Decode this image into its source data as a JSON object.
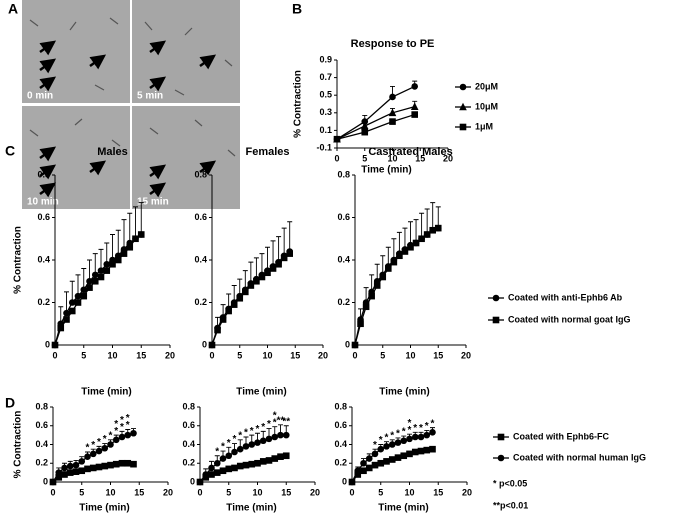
{
  "panel_a": {
    "label": "A",
    "images": [
      "0 min",
      "5 min",
      "10 min",
      "15 min"
    ]
  },
  "chart_data": [
    {
      "type": "line",
      "panel_label": "B",
      "title": "Response to PE",
      "xlabel": "Time (min)",
      "ylabel": "% Contraction",
      "x": [
        0,
        5,
        10,
        14
      ],
      "xlim": [
        0,
        20
      ],
      "xticks": [
        0,
        5,
        10,
        15,
        20
      ],
      "ylim": [
        -0.1,
        0.9
      ],
      "yticks": [
        -0.1,
        0.1,
        0.3,
        0.5,
        0.7,
        0.9
      ],
      "legend": "right",
      "series": [
        {
          "name": "20μM",
          "color": "#000000",
          "marker": "circle",
          "values": [
            0,
            0.2,
            0.48,
            0.6
          ],
          "errors": [
            0,
            0.07,
            0.12,
            0.06
          ]
        },
        {
          "name": "10μM",
          "color": "#000000",
          "marker": "triangle",
          "values": [
            0,
            0.15,
            0.3,
            0.37
          ],
          "errors": [
            0,
            0.05,
            0.05,
            0.06
          ]
        },
        {
          "name": "1μM",
          "color": "#000000",
          "marker": "square",
          "values": [
            0,
            0.08,
            0.2,
            0.28
          ],
          "errors": [
            0,
            0.02,
            0.03,
            0.03
          ]
        }
      ]
    },
    {
      "type": "line",
      "panel_label": "C",
      "title": "Males",
      "xlabel": "Time (min)",
      "ylabel": "% Contraction",
      "x": [
        0,
        1,
        2,
        3,
        4,
        5,
        6,
        7,
        8,
        9,
        10,
        11,
        12,
        13,
        14,
        15
      ],
      "xlim": [
        0,
        20
      ],
      "xticks": [
        0,
        5,
        10,
        15,
        20
      ],
      "ylim": [
        0,
        0.8
      ],
      "yticks": [
        0,
        0.2,
        0.4,
        0.6,
        0.8
      ],
      "series": [
        {
          "color": "#000000",
          "marker": "circle",
          "values": [
            0,
            0.1,
            0.15,
            0.2,
            0.23,
            0.26,
            0.3,
            0.33,
            0.35,
            0.38,
            0.4,
            0.42,
            0.45,
            0.48,
            0.5,
            0.52
          ],
          "errors": [
            0,
            0.08,
            0.1,
            0.1,
            0.1,
            0.1,
            0.1,
            0.1,
            0.1,
            0.1,
            0.12,
            0.12,
            0.14,
            0.14,
            0.15,
            0.15
          ]
        },
        {
          "color": "#000000",
          "marker": "square",
          "values": [
            0,
            0.08,
            0.12,
            0.16,
            0.2,
            0.23,
            0.27,
            0.3,
            0.32,
            0.35,
            0.38,
            0.4,
            0.43,
            0.46,
            0.5,
            0.52
          ]
        }
      ]
    },
    {
      "type": "line",
      "title": "Females",
      "xlabel": "Time (min)",
      "x": [
        0,
        1,
        2,
        3,
        4,
        5,
        6,
        7,
        8,
        9,
        10,
        11,
        12,
        13,
        14
      ],
      "xlim": [
        0,
        20
      ],
      "xticks": [
        0,
        5,
        10,
        15,
        20
      ],
      "ylim": [
        0,
        0.8
      ],
      "yticks": [
        0,
        0.2,
        0.4,
        0.6,
        0.8
      ],
      "series": [
        {
          "color": "#000000",
          "marker": "circle",
          "values": [
            0,
            0.08,
            0.13,
            0.17,
            0.2,
            0.23,
            0.26,
            0.29,
            0.31,
            0.33,
            0.35,
            0.37,
            0.39,
            0.42,
            0.44
          ],
          "errors": [
            0,
            0.05,
            0.06,
            0.07,
            0.08,
            0.08,
            0.09,
            0.1,
            0.1,
            0.1,
            0.11,
            0.12,
            0.12,
            0.13,
            0.14
          ]
        },
        {
          "color": "#000000",
          "marker": "square",
          "values": [
            0,
            0.07,
            0.12,
            0.16,
            0.19,
            0.22,
            0.25,
            0.28,
            0.3,
            0.32,
            0.34,
            0.36,
            0.38,
            0.41,
            0.43
          ]
        }
      ]
    },
    {
      "type": "line",
      "title": "Castrated Males",
      "xlabel": "Time (min)",
      "x": [
        0,
        1,
        2,
        3,
        4,
        5,
        6,
        7,
        8,
        9,
        10,
        11,
        12,
        13,
        14,
        15
      ],
      "xlim": [
        0,
        20
      ],
      "xticks": [
        0,
        5,
        10,
        15,
        20
      ],
      "ylim": [
        0,
        0.8
      ],
      "yticks": [
        0,
        0.2,
        0.4,
        0.6,
        0.8
      ],
      "legend": "right",
      "series": [
        {
          "name": "Coated with anti-Ephb6 Ab",
          "color": "#000000",
          "marker": "circle",
          "values": [
            0,
            0.12,
            0.2,
            0.25,
            0.3,
            0.33,
            0.37,
            0.4,
            0.43,
            0.45,
            0.47,
            0.48,
            0.5,
            0.52,
            0.54,
            0.55
          ],
          "errors": [
            0,
            0.05,
            0.07,
            0.08,
            0.08,
            0.09,
            0.09,
            0.1,
            0.1,
            0.1,
            0.11,
            0.11,
            0.12,
            0.12,
            0.13,
            0.1
          ]
        },
        {
          "name": "Coated with normal goat IgG",
          "color": "#000000",
          "marker": "square",
          "values": [
            0,
            0.1,
            0.18,
            0.23,
            0.28,
            0.32,
            0.36,
            0.39,
            0.42,
            0.44,
            0.46,
            0.48,
            0.5,
            0.52,
            0.54,
            0.55
          ]
        }
      ]
    },
    {
      "type": "line",
      "panel_label": "D",
      "xlabel": "Time (min)",
      "ylabel": "% Contraction",
      "x": [
        0,
        1,
        2,
        3,
        4,
        5,
        6,
        7,
        8,
        9,
        10,
        11,
        12,
        13,
        14
      ],
      "xlim": [
        0,
        20
      ],
      "xticks": [
        0,
        5,
        10,
        15,
        20
      ],
      "ylim": [
        0,
        0.8
      ],
      "yticks": [
        0,
        0.2,
        0.4,
        0.6,
        0.8
      ],
      "series": [
        {
          "color": "#000000",
          "marker": "square",
          "values": [
            0,
            0.05,
            0.08,
            0.1,
            0.11,
            0.12,
            0.14,
            0.15,
            0.16,
            0.17,
            0.18,
            0.19,
            0.2,
            0.2,
            0.19
          ]
        },
        {
          "color": "#000000",
          "marker": "circle",
          "values": [
            0,
            0.1,
            0.15,
            0.17,
            0.18,
            0.22,
            0.27,
            0.3,
            0.33,
            0.36,
            0.4,
            0.45,
            0.48,
            0.5,
            0.52
          ],
          "errors": [
            0,
            0.05,
            0.05,
            0.05,
            0.05,
            0.05,
            0.05,
            0.05,
            0.05,
            0.05,
            0.05,
            0.05,
            0.06,
            0.06,
            0.05
          ]
        }
      ],
      "annotations": [
        {
          "x": 6,
          "text": "*"
        },
        {
          "x": 7,
          "text": "*"
        },
        {
          "x": 8,
          "text": "*"
        },
        {
          "x": 9,
          "text": "*"
        },
        {
          "x": 10,
          "text": "*"
        },
        {
          "x": 11,
          "text": "*"
        },
        {
          "x": 12,
          "text": "*"
        },
        {
          "x": 13,
          "text": "*"
        },
        {
          "x": 11,
          "text": "*"
        },
        {
          "x": 12,
          "text": "*"
        },
        {
          "x": 13,
          "text": "*"
        }
      ]
    },
    {
      "type": "line",
      "xlabel": "Time (min)",
      "x": [
        0,
        1,
        2,
        3,
        4,
        5,
        6,
        7,
        8,
        9,
        10,
        11,
        12,
        13,
        14,
        15
      ],
      "xlim": [
        0,
        20
      ],
      "xticks": [
        0,
        5,
        10,
        15,
        20
      ],
      "ylim": [
        0,
        0.8
      ],
      "yticks": [
        0,
        0.2,
        0.4,
        0.6,
        0.8
      ],
      "series": [
        {
          "color": "#000000",
          "marker": "square",
          "values": [
            0,
            0.05,
            0.08,
            0.1,
            0.12,
            0.14,
            0.15,
            0.17,
            0.18,
            0.19,
            0.2,
            0.22,
            0.23,
            0.25,
            0.27,
            0.28
          ]
        },
        {
          "color": "#000000",
          "marker": "circle",
          "values": [
            0,
            0.08,
            0.15,
            0.2,
            0.25,
            0.28,
            0.32,
            0.35,
            0.38,
            0.4,
            0.42,
            0.44,
            0.46,
            0.48,
            0.5,
            0.5
          ],
          "errors": [
            0,
            0.06,
            0.07,
            0.08,
            0.08,
            0.09,
            0.09,
            0.1,
            0.1,
            0.1,
            0.1,
            0.1,
            0.11,
            0.11,
            0.11,
            0.1
          ]
        }
      ],
      "annotations": [
        {
          "x": 3,
          "text": "*"
        },
        {
          "x": 4,
          "text": "*"
        },
        {
          "x": 5,
          "text": "*"
        },
        {
          "x": 6,
          "text": "*"
        },
        {
          "x": 7,
          "text": "*"
        },
        {
          "x": 8,
          "text": "*"
        },
        {
          "x": 9,
          "text": "*"
        },
        {
          "x": 10,
          "text": "*"
        },
        {
          "x": 11,
          "text": "*"
        },
        {
          "x": 12,
          "text": "*"
        },
        {
          "x": 13,
          "text": "*"
        },
        {
          "x": 13,
          "text": "*"
        },
        {
          "x": 14,
          "text": "**"
        },
        {
          "x": 15,
          "text": "**"
        }
      ]
    },
    {
      "type": "line",
      "xlabel": "Time (min)",
      "x": [
        0,
        1,
        2,
        3,
        4,
        5,
        6,
        7,
        8,
        9,
        10,
        11,
        12,
        13,
        14
      ],
      "xlim": [
        0,
        20
      ],
      "xticks": [
        0,
        5,
        10,
        15,
        20
      ],
      "ylim": [
        0,
        0.8
      ],
      "yticks": [
        0,
        0.2,
        0.4,
        0.6,
        0.8
      ],
      "legend": "right",
      "series": [
        {
          "name": "Coated with Ephb6-FC",
          "color": "#000000",
          "marker": "square",
          "values": [
            0,
            0.08,
            0.12,
            0.15,
            0.18,
            0.2,
            0.22,
            0.24,
            0.26,
            0.28,
            0.3,
            0.32,
            0.33,
            0.34,
            0.35
          ]
        },
        {
          "name": "Coated with normal human IgG",
          "color": "#000000",
          "marker": "circle",
          "values": [
            0,
            0.12,
            0.2,
            0.25,
            0.3,
            0.35,
            0.38,
            0.4,
            0.42,
            0.44,
            0.46,
            0.48,
            0.48,
            0.5,
            0.53
          ],
          "errors": [
            0,
            0.04,
            0.05,
            0.05,
            0.05,
            0.05,
            0.05,
            0.05,
            0.05,
            0.05,
            0.05,
            0.05,
            0.05,
            0.05,
            0.05
          ]
        }
      ],
      "annotations": [
        {
          "x": 4,
          "text": "*"
        },
        {
          "x": 5,
          "text": "*"
        },
        {
          "x": 6,
          "text": "*"
        },
        {
          "x": 7,
          "text": "*"
        },
        {
          "x": 8,
          "text": "*"
        },
        {
          "x": 9,
          "text": "*"
        },
        {
          "x": 10,
          "text": "*"
        },
        {
          "x": 11,
          "text": "*"
        },
        {
          "x": 12,
          "text": "*"
        },
        {
          "x": 13,
          "text": "*"
        },
        {
          "x": 14,
          "text": "*"
        },
        {
          "x": 10,
          "text": "*"
        }
      ],
      "notes": [
        "* p<0.05",
        "**p<0.01"
      ]
    }
  ]
}
